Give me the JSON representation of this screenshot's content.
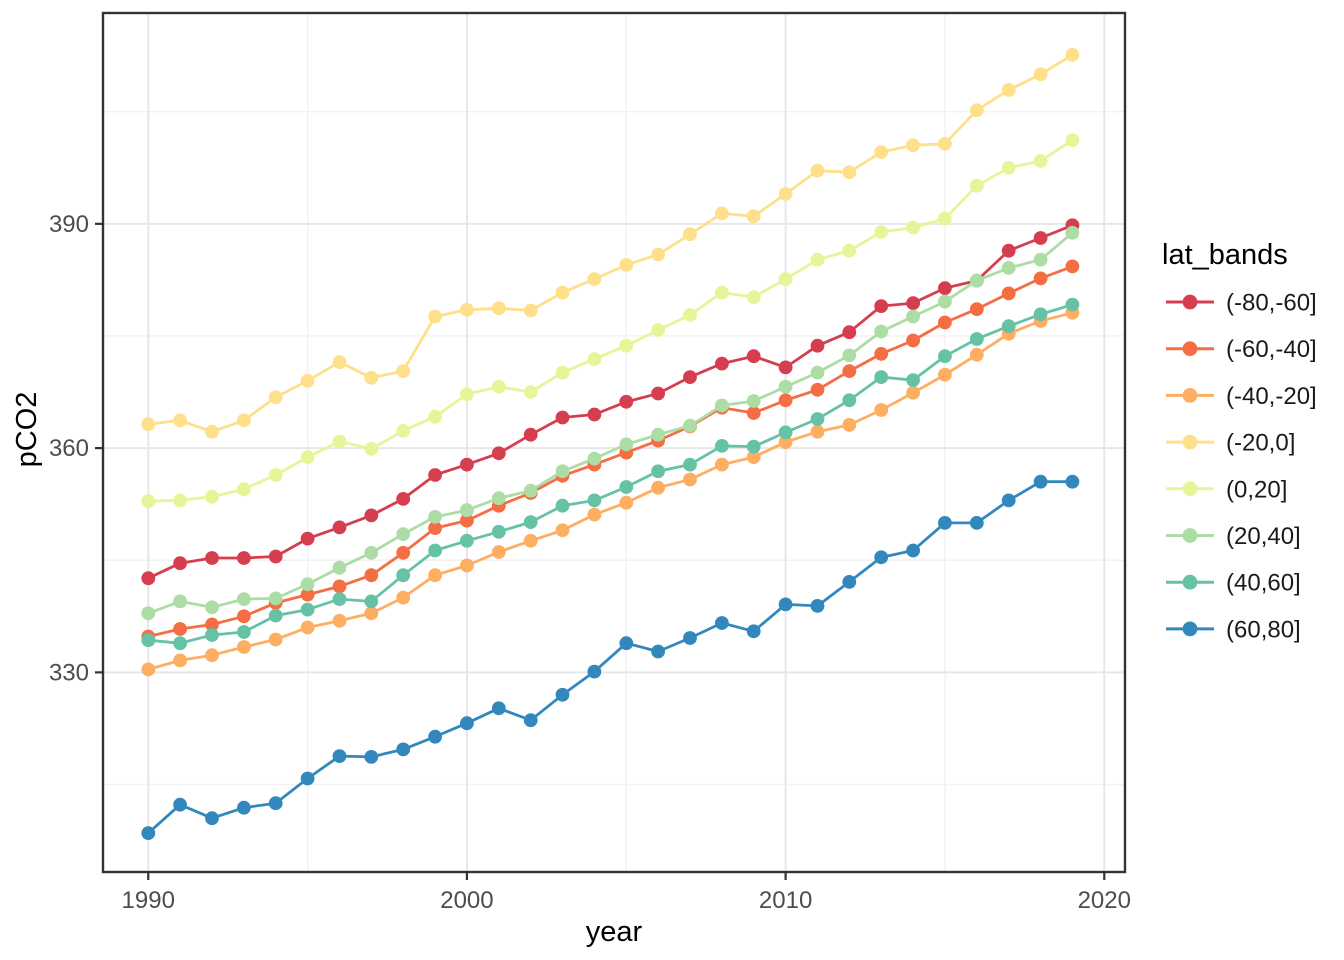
{
  "figure": {
    "background": "#ffffff",
    "panel_border_color": "#333333",
    "grid_major_color": "#e7e7e7",
    "grid_minor_color": "#f2f2f2",
    "tick_color": "#333333",
    "tick_label_color": "#4d4d4d",
    "axis_title_color": "#000000"
  },
  "chart_data": {
    "type": "line",
    "title": "",
    "xlabel": "year",
    "ylabel": "pCO2",
    "legend_title": "lat_bands",
    "legend_position": "right",
    "grid": true,
    "marker": "circle",
    "xlim": [
      1988.58,
      2020.65
    ],
    "ylim": [
      303.3,
      418.2
    ],
    "xticks": [
      1990,
      2000,
      2010,
      2020
    ],
    "xticks_minor": [
      1995,
      2005,
      2015
    ],
    "yticks": [
      330,
      360,
      390
    ],
    "yticks_minor": [
      315,
      345,
      375,
      405
    ],
    "x": [
      1990,
      1991,
      1992,
      1993,
      1994,
      1995,
      1996,
      1997,
      1998,
      1999,
      2000,
      2001,
      2002,
      2003,
      2004,
      2005,
      2006,
      2007,
      2008,
      2009,
      2010,
      2011,
      2012,
      2013,
      2014,
      2015,
      2016,
      2017,
      2018,
      2019
    ],
    "series": [
      {
        "name": "(-80,-60]",
        "color": "#D53E4F",
        "values": [
          342.6,
          344.6,
          345.3,
          345.3,
          345.5,
          347.9,
          349.4,
          351.0,
          353.2,
          356.4,
          357.8,
          359.3,
          361.8,
          364.1,
          364.5,
          366.2,
          367.3,
          369.5,
          371.3,
          372.3,
          370.8,
          373.7,
          375.5,
          379.0,
          379.4,
          381.4,
          382.4,
          386.4,
          388.1,
          389.8
        ]
      },
      {
        "name": "(-60,-40]",
        "color": "#F46D43",
        "values": [
          334.8,
          335.8,
          336.4,
          337.5,
          339.3,
          340.4,
          341.5,
          343.0,
          346.0,
          349.3,
          350.3,
          352.3,
          354.0,
          356.3,
          357.8,
          359.4,
          361.0,
          362.9,
          365.4,
          364.7,
          366.4,
          367.8,
          370.3,
          372.6,
          374.4,
          376.8,
          378.6,
          380.7,
          382.7,
          384.3
        ]
      },
      {
        "name": "(-40,-20]",
        "color": "#FDAE61",
        "values": [
          330.4,
          331.6,
          332.3,
          333.4,
          334.4,
          336.0,
          336.9,
          337.9,
          340.0,
          343.0,
          344.3,
          346.1,
          347.6,
          349.0,
          351.1,
          352.7,
          354.7,
          355.8,
          357.8,
          358.8,
          360.8,
          362.2,
          363.1,
          365.1,
          367.4,
          369.8,
          372.5,
          375.3,
          377.0,
          378.1
        ]
      },
      {
        "name": "(-20,0]",
        "color": "#FEE08B",
        "values": [
          363.2,
          363.7,
          362.2,
          363.7,
          366.8,
          369.0,
          371.5,
          369.4,
          370.3,
          377.6,
          378.5,
          378.7,
          378.4,
          380.8,
          382.6,
          384.5,
          385.9,
          388.6,
          391.4,
          391.0,
          394.0,
          397.1,
          396.9,
          399.6,
          400.5,
          400.7,
          405.2,
          407.9,
          410.0,
          412.6
        ]
      },
      {
        "name": "(0,20]",
        "color": "#E6F598",
        "values": [
          352.9,
          353.0,
          353.5,
          354.5,
          356.4,
          358.8,
          360.9,
          359.9,
          362.3,
          364.2,
          367.2,
          368.2,
          367.5,
          370.1,
          371.9,
          373.7,
          375.8,
          377.8,
          380.8,
          380.2,
          382.6,
          385.2,
          386.4,
          388.9,
          389.5,
          390.7,
          395.1,
          397.5,
          398.4,
          401.2
        ]
      },
      {
        "name": "(20,40]",
        "color": "#ABDDA4",
        "values": [
          337.9,
          339.5,
          338.7,
          339.8,
          339.9,
          341.8,
          344.0,
          346.0,
          348.5,
          350.8,
          351.7,
          353.3,
          354.3,
          356.9,
          358.6,
          360.5,
          361.8,
          363.0,
          365.7,
          366.3,
          368.2,
          370.1,
          372.4,
          375.6,
          377.6,
          379.6,
          382.4,
          384.1,
          385.2,
          388.8
        ]
      },
      {
        "name": "(40,60]",
        "color": "#66C2A5",
        "values": [
          334.3,
          333.9,
          335.0,
          335.4,
          337.6,
          338.4,
          339.8,
          339.5,
          343.0,
          346.3,
          347.6,
          348.8,
          350.1,
          352.3,
          353.0,
          354.8,
          356.9,
          357.8,
          360.3,
          360.2,
          362.1,
          363.9,
          366.4,
          369.5,
          369.1,
          372.3,
          374.6,
          376.3,
          377.9,
          379.2
        ]
      },
      {
        "name": "(60,80]",
        "color": "#3288BD",
        "values": [
          308.5,
          312.3,
          310.5,
          311.9,
          312.5,
          315.8,
          318.8,
          318.7,
          319.7,
          321.4,
          323.2,
          325.2,
          323.6,
          327.0,
          330.1,
          333.9,
          332.8,
          334.6,
          336.6,
          335.5,
          339.1,
          338.9,
          342.1,
          345.4,
          346.3,
          350.0,
          350.0,
          353.0,
          355.5,
          355.5
        ]
      }
    ]
  }
}
